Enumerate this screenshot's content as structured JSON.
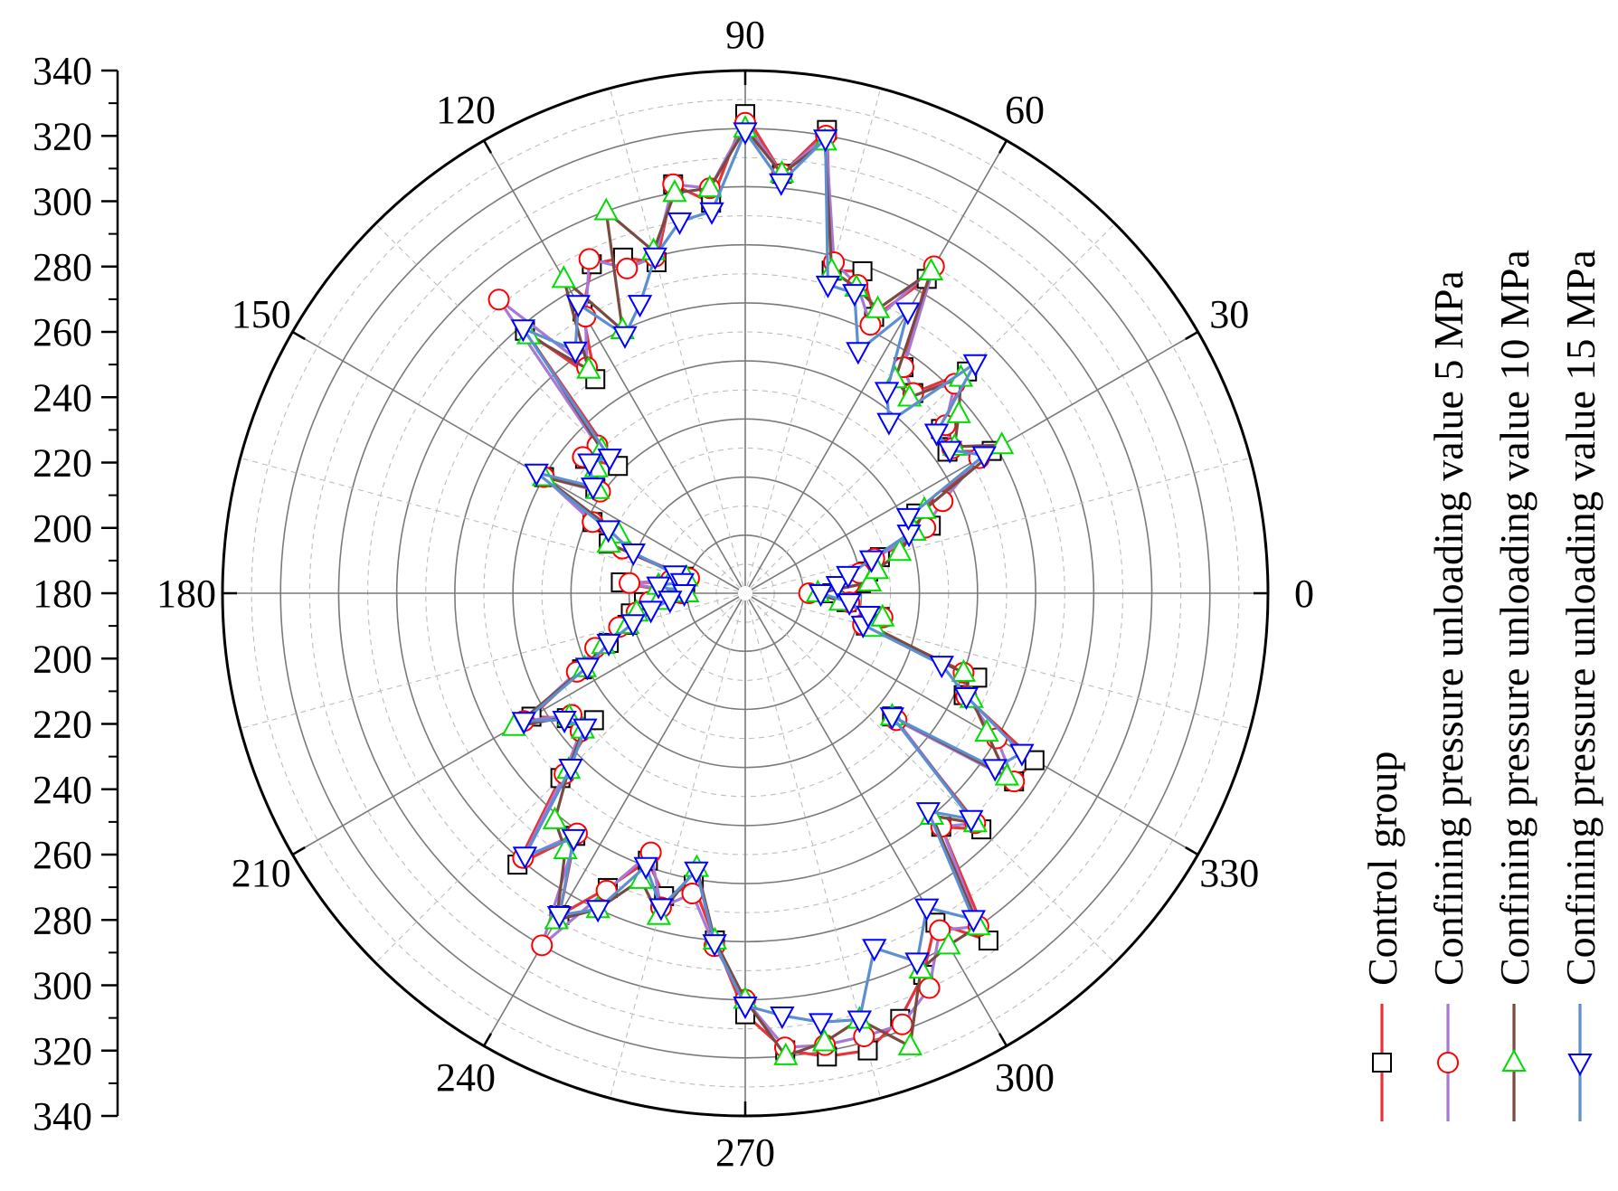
{
  "chart_data": {
    "type": "polar-line",
    "title": "",
    "radial_axis": {
      "range": [
        160,
        340
      ],
      "major_ticks": [
        340,
        320,
        300,
        280,
        260,
        240,
        220,
        200,
        180,
        200,
        220,
        240,
        260,
        280,
        300,
        320,
        340
      ],
      "grid": true,
      "minor_grid": true
    },
    "angular_axis": {
      "labels": [
        "0",
        "30",
        "60",
        "90",
        "120",
        "150",
        "180",
        "210",
        "240",
        "270",
        "300",
        "330"
      ],
      "unit": "deg"
    },
    "legend": {
      "placement": "right",
      "orientation": "vertical-rotated",
      "entries": [
        {
          "label": "Control group",
          "color": "#e8323c",
          "marker": "square",
          "marker_color": "#000000"
        },
        {
          "label": "Confining pressure unloading value 5 MPa",
          "color": "#a779d6",
          "marker": "circle",
          "marker_color": "#ff0000"
        },
        {
          "label": "Confining pressure unloading value 10 MPa",
          "color": "#7a4a40",
          "marker": "triangle-up",
          "marker_color": "#00dd00"
        },
        {
          "label": "Confining pressure unloading value 15 MPa",
          "color": "#5b8fd0",
          "marker": "triangle-down",
          "marker_color": "#0000ff"
        }
      ]
    },
    "series": [
      {
        "name": "Control group",
        "theta": [
          0,
          5,
          10,
          15,
          20,
          25,
          30,
          35,
          40,
          45,
          50,
          55,
          60,
          65,
          70,
          75,
          80,
          85,
          90,
          95,
          100,
          105,
          110,
          115,
          120,
          125,
          130,
          135,
          140,
          145,
          150,
          155,
          160,
          165,
          170,
          175,
          180,
          185,
          190,
          195,
          200,
          205,
          210,
          215,
          220,
          225,
          230,
          235,
          240,
          245,
          250,
          255,
          260,
          265,
          270,
          275,
          280,
          285,
          290,
          295,
          300,
          305,
          310,
          315,
          320,
          325,
          330,
          335,
          340,
          345,
          350,
          355
        ],
        "r": [
          190,
          200,
          203,
          208,
          228,
          225,
          258,
          245,
          248,
          268,
          250,
          255,
          285,
          265,
          278,
          275,
          322,
          305,
          325,
          295,
          303,
          278,
          283,
          285,
          272,
          250,
          278,
          222,
          232,
          223,
          240,
          218,
          210,
          182,
          181,
          203,
          183,
          195,
          200,
          202,
          210,
          222,
          245,
          235,
          228,
          250,
          282,
          262,
          288,
          272,
          258,
          268,
          262,
          280,
          305,
          318,
          322,
          323,
          316,
          305,
          291,
          306,
          265,
          275,
          226,
          273,
          275,
          243,
          245,
          203,
          207,
          195
        ]
      },
      {
        "name": "Confining pressure unloading value 5 MPa",
        "theta": [
          0,
          5,
          10,
          15,
          20,
          25,
          30,
          35,
          40,
          45,
          50,
          55,
          60,
          65,
          70,
          75,
          80,
          85,
          90,
          95,
          100,
          105,
          110,
          115,
          120,
          125,
          130,
          135,
          140,
          145,
          150,
          155,
          160,
          165,
          170,
          175,
          180,
          185,
          190,
          195,
          200,
          205,
          210,
          215,
          220,
          225,
          230,
          235,
          240,
          245,
          250,
          255,
          260,
          265,
          270,
          275,
          280,
          285,
          290,
          295,
          300,
          305,
          310,
          315,
          320,
          325,
          330,
          335,
          340,
          345,
          350,
          355
        ],
        "r": [
          182,
          196,
          200,
          206,
          226,
          235,
          253,
          247,
          250,
          262,
          250,
          255,
          290,
          262,
          273,
          278,
          320,
          305,
          322,
          300,
          303,
          280,
          279,
          287,
          270,
          255,
          292,
          232,
          233,
          221,
          240,
          218,
          205,
          180,
          186,
          200,
          182,
          193,
          198,
          205,
          215,
          224,
          248,
          233,
          234,
          248,
          279,
          261,
          300,
          273,
          255,
          272,
          265,
          282,
          300,
          317,
          318,
          318,
          318,
          310,
          294,
          300,
          265,
          272,
          228,
          273,
          260,
          244,
          240,
          202,
          208,
          196
        ]
      },
      {
        "name": "Confining pressure unloading value 10 MPa",
        "theta": [
          0,
          5,
          10,
          15,
          20,
          25,
          30,
          35,
          40,
          45,
          50,
          55,
          60,
          65,
          70,
          75,
          80,
          85,
          90,
          95,
          100,
          105,
          110,
          115,
          120,
          125,
          130,
          135,
          140,
          145,
          150,
          155,
          160,
          165,
          170,
          175,
          180,
          185,
          190,
          195,
          200,
          205,
          210,
          215,
          220,
          225,
          230,
          235,
          240,
          245,
          250,
          255,
          260,
          265,
          270,
          275,
          280,
          285,
          290,
          295,
          300,
          305,
          310,
          315,
          320,
          325,
          330,
          335,
          340,
          345,
          350,
          355
        ],
        "r": [
          185,
          203,
          206,
          215,
          222,
          228,
          262,
          248,
          256,
          265,
          248,
          250,
          288,
          268,
          272,
          275,
          318,
          305,
          320,
          300,
          300,
          282,
          300,
          260,
          285,
          254,
          276,
          230,
          227,
          222,
          240,
          208,
          210,
          181,
          186,
          190,
          180,
          190,
          198,
          202,
          212,
          221,
          252,
          234,
          233,
          246,
          262,
          268,
          290,
          280,
          265,
          275,
          256,
          280,
          300,
          320,
          317,
          312,
          326,
          303,
          300,
          300,
          260,
          272,
          226,
          270,
          256,
          246,
          240,
          206,
          208,
          193
        ]
      },
      {
        "name": "Confining pressure unloading value 15 MPa",
        "theta": [
          0,
          5,
          10,
          15,
          20,
          25,
          30,
          35,
          40,
          45,
          50,
          55,
          60,
          65,
          70,
          75,
          80,
          85,
          90,
          95,
          100,
          105,
          110,
          115,
          120,
          125,
          130,
          135,
          140,
          145,
          150,
          155,
          160,
          165,
          170,
          175,
          180,
          185,
          190,
          195,
          200,
          205,
          210,
          215,
          220,
          225,
          230,
          235,
          240,
          245,
          250,
          255,
          260,
          265,
          270,
          275,
          280,
          285,
          290,
          295,
          300,
          305,
          310,
          315,
          320,
          325,
          330,
          335,
          340,
          345,
          350,
          355
        ],
        "r": [
          186,
          192,
          196,
          205,
          220,
          222,
          255,
          246,
          246,
          272,
          237,
          245,
          272,
          252,
          270,
          270,
          319,
          302,
          319,
          292,
          290,
          280,
          266,
          258,
          275,
          262,
          279,
          226,
          230,
          224,
          243,
          212,
          201,
          185,
          182,
          190,
          181,
          186,
          193,
          200,
          210,
          220,
          248,
          236,
          232,
          245,
          278,
          263,
          288,
          280,
          260,
          272,
          257,
          281,
          302,
          306,
          310,
          312,
          290,
          300,
          285,
          297,
          258,
          270,
          226,
          265,
          270,
          244,
          232,
          202,
          203,
          196
        ]
      }
    ]
  }
}
